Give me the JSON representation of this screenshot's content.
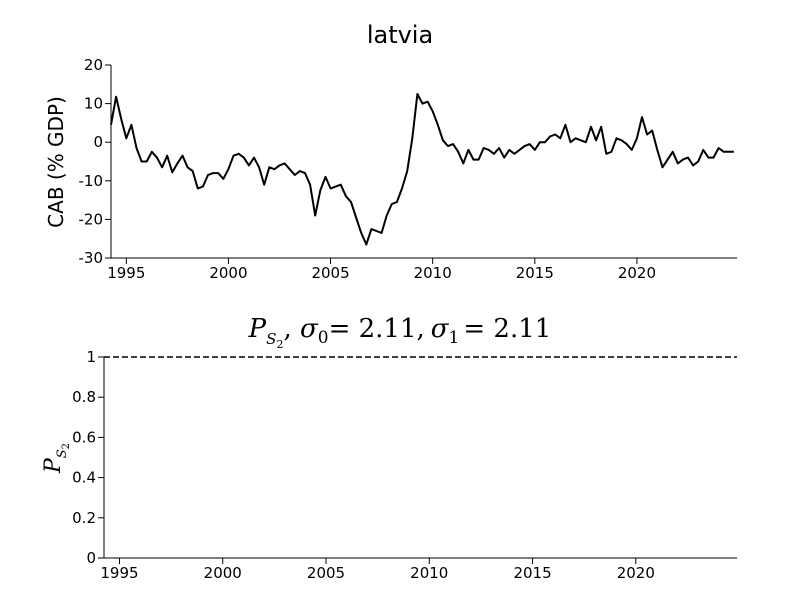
{
  "chart_data": [
    {
      "type": "line",
      "title": "latvia",
      "xlabel": "",
      "ylabel": "CAB (% GDP)",
      "xlim": [
        1994.25,
        2024.9
      ],
      "ylim": [
        -30,
        20
      ],
      "xticks": [
        1995,
        2000,
        2005,
        2010,
        2015,
        2020
      ],
      "yticks": [
        -30,
        -20,
        -10,
        0,
        10,
        20
      ],
      "grid": false,
      "series": [
        {
          "name": "",
          "x": [
            1994.25,
            1994.5,
            1994.75,
            1995.0,
            1995.25,
            1995.5,
            1995.75,
            1996.0,
            1996.25,
            1996.5,
            1996.75,
            1997.0,
            1997.25,
            1997.5,
            1997.75,
            1998.0,
            1998.25,
            1998.5,
            1998.75,
            1999.0,
            1999.25,
            1999.5,
            1999.75,
            2000.0,
            2000.25,
            2000.5,
            2000.75,
            2001.0,
            2001.25,
            2001.5,
            2001.75,
            2002.0,
            2002.25,
            2002.5,
            2002.75,
            2003.0,
            2003.25,
            2003.5,
            2003.75,
            2004.0,
            2004.25,
            2004.5,
            2004.75,
            2005.0,
            2005.25,
            2005.5,
            2005.75,
            2006.0,
            2006.25,
            2006.5,
            2006.75,
            2007.0,
            2007.25,
            2007.5,
            2007.75,
            2008.0,
            2008.25,
            2008.5,
            2008.75,
            2009.0,
            2009.25,
            2009.5,
            2009.75,
            2010.0,
            2010.25,
            2010.5,
            2010.75,
            2011.0,
            2011.25,
            2011.5,
            2011.75,
            2012.0,
            2012.25,
            2012.5,
            2012.75,
            2013.0,
            2013.25,
            2013.5,
            2013.75,
            2014.0,
            2014.25,
            2014.5,
            2014.75,
            2015.0,
            2015.25,
            2015.5,
            2015.75,
            2016.0,
            2016.25,
            2016.5,
            2016.75,
            2017.0,
            2017.25,
            2017.5,
            2017.75,
            2018.0,
            2018.25,
            2018.5,
            2018.75,
            2019.0,
            2019.25,
            2019.5,
            2019.75,
            2020.0,
            2020.25,
            2020.5,
            2020.75,
            2021.0,
            2021.25,
            2021.5,
            2021.75,
            2022.0,
            2022.25,
            2022.5,
            2022.75,
            2023.0,
            2023.25,
            2023.5,
            2023.75,
            2024.0,
            2024.25,
            2024.5,
            2024.75
          ],
          "values": [
            4.5,
            11.8,
            6.0,
            1.0,
            4.5,
            -1.5,
            -5.0,
            -5.0,
            -2.5,
            -4.0,
            -6.5,
            -3.5,
            -7.8,
            -5.5,
            -3.5,
            -6.5,
            -7.5,
            -12.0,
            -11.5,
            -8.5,
            -8.0,
            -8.0,
            -9.5,
            -7.0,
            -3.5,
            -3.0,
            -4.0,
            -6.0,
            -4.0,
            -6.5,
            -11.0,
            -6.5,
            -7.0,
            -6.0,
            -5.5,
            -7.0,
            -8.5,
            -7.5,
            -8.0,
            -11.0,
            -19.0,
            -12.5,
            -9.0,
            -12.0,
            -11.5,
            -11.0,
            -14.0,
            -15.5,
            -19.5,
            -23.5,
            -26.5,
            -22.5,
            -23.0,
            -23.5,
            -19.0,
            -16.0,
            -15.5,
            -12.0,
            -7.5,
            1.0,
            12.5,
            10.0,
            10.5,
            8.0,
            4.5,
            0.5,
            -1.0,
            -0.5,
            -2.5,
            -5.5,
            -2.0,
            -4.5,
            -4.5,
            -1.5,
            -2.0,
            -3.0,
            -1.5,
            -4.0,
            -2.0,
            -3.0,
            -2.0,
            -1.0,
            -0.5,
            -2.0,
            0.0,
            0.0,
            1.5,
            2.0,
            1.0,
            4.5,
            0.0,
            1.0,
            0.5,
            0.0,
            4.0,
            0.5,
            4.0,
            -3.0,
            -2.5,
            1.0,
            0.5,
            -0.5,
            -2.0,
            1.0,
            6.5,
            2.0,
            3.0,
            -2.0,
            -6.5,
            -4.5,
            -2.5,
            -5.5,
            -4.5,
            -4.0,
            -6.0,
            -5.0,
            -2.0,
            -4.0,
            -4.0,
            -1.5,
            -2.5,
            -2.5,
            -2.5
          ]
        }
      ]
    },
    {
      "type": "line",
      "title": "P_{S_2}, σ_0 = 2.11, σ_1 = 2.11",
      "xlabel": "",
      "ylabel": "P_{S_2}",
      "xlim": [
        1994.25,
        2024.9
      ],
      "ylim": [
        0,
        1
      ],
      "xticks": [
        1995,
        2000,
        2005,
        2010,
        2015,
        2020
      ],
      "yticks": [
        0,
        0.2,
        0.4,
        0.6,
        0.8,
        1
      ],
      "grid": false,
      "series": [
        {
          "name": "",
          "style": "dashed",
          "x": [
            1994.25,
            2024.9
          ],
          "values": [
            1,
            1
          ]
        }
      ]
    }
  ],
  "top": {
    "title": "latvia",
    "ylabel": "CAB (% GDP)",
    "xtick_labels": [
      "1995",
      "2000",
      "2005",
      "2010",
      "2015",
      "2020"
    ],
    "ytick_labels": [
      "-30",
      "-20",
      "-10",
      "0",
      "10",
      "20"
    ]
  },
  "bottom": {
    "title_sym": "P",
    "title_sub": "S",
    "title_sub2": "2",
    "title_sigma0": "σ",
    "title_sigma0_sub": "0",
    "title_eq0": "= 2.11,",
    "title_sigma1": "σ",
    "title_sigma1_sub": "1",
    "title_eq1": "= 2.11",
    "ylabel_sym": "P",
    "ylabel_sub": "S",
    "ylabel_sub2": "2",
    "xtick_labels": [
      "1995",
      "2000",
      "2005",
      "2010",
      "2015",
      "2020"
    ],
    "ytick_labels": [
      "0",
      "0.2",
      "0.4",
      "0.6",
      "0.8",
      "1"
    ]
  }
}
